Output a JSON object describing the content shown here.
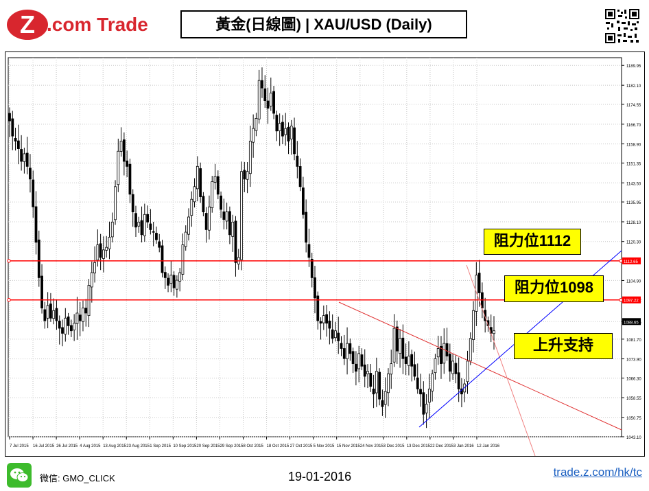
{
  "header": {
    "logo_mark": "Z",
    "logo_text": ".com Trade",
    "title": "黃金(日線圖) | XAU/USD (Daily)"
  },
  "colors": {
    "brand_red": "#d8262e",
    "resistance_line": "#ff0000",
    "support_line": "#0000ff",
    "highlight": "#ffff00"
  },
  "chart_data": {
    "type": "candlestick",
    "symbol": "XAU/USD",
    "timeframe": "Daily",
    "ylim": [
      1043.1,
      1193.0
    ],
    "y_ticks": [
      "1189.95",
      "1182.10",
      "1174.55",
      "1166.70",
      "1158.90",
      "1151.35",
      "1143.50",
      "1135.95",
      "1128.10",
      "1120.30",
      "1112.65",
      "1104.90",
      "1097.22",
      "1088.65",
      "1081.70",
      "1073.90",
      "1066.30",
      "1058.55",
      "1050.75",
      "1043.10"
    ],
    "x_ticks": [
      "7 Jul 2015",
      "16 Jul 2015",
      "26 Jul 2015",
      "4 Aug 2015",
      "13 Aug 2015",
      "23 Aug 2015",
      "1 Sep 2015",
      "10 Sep 2015",
      "20 Sep 2015",
      "29 Sep 2015",
      "8 Oct 2015",
      "18 Oct 2015",
      "27 Oct 2015",
      "5 Nov 2015",
      "15 Nov 2015",
      "24 Nov 2015",
      "3 Dec 2015",
      "13 Dec 2015",
      "22 Dec 2015",
      "3 Jan 2016",
      "12 Jan 2016"
    ],
    "price_tags": [
      "1112.65",
      "1097.22",
      "1088.65"
    ],
    "closes": [
      1168,
      1162,
      1160,
      1157,
      1152,
      1155,
      1150,
      1145,
      1134,
      1120,
      1106,
      1094,
      1089,
      1095,
      1090,
      1093,
      1089,
      1086,
      1084,
      1090,
      1087,
      1085,
      1088,
      1092,
      1089,
      1094,
      1092,
      1103,
      1108,
      1112,
      1119,
      1114,
      1117,
      1118,
      1122,
      1128,
      1142,
      1156,
      1160,
      1152,
      1150,
      1139,
      1132,
      1126,
      1128,
      1123,
      1131,
      1128,
      1125,
      1124,
      1121,
      1118,
      1108,
      1106,
      1103,
      1107,
      1102,
      1105,
      1108,
      1119,
      1124,
      1130,
      1137,
      1142,
      1150,
      1138,
      1132,
      1125,
      1134,
      1144,
      1146,
      1139,
      1133,
      1129,
      1132,
      1123,
      1128,
      1112,
      1114,
      1148,
      1145,
      1148,
      1160,
      1165,
      1169,
      1184,
      1181,
      1176,
      1173,
      1179,
      1171,
      1164,
      1167,
      1162,
      1165,
      1160,
      1166,
      1155,
      1150,
      1142,
      1131,
      1120,
      1114,
      1106,
      1098,
      1089,
      1088,
      1091,
      1088,
      1086,
      1082,
      1085,
      1081,
      1078,
      1074,
      1080,
      1076,
      1072,
      1069,
      1076,
      1071,
      1067,
      1069,
      1063,
      1060,
      1069,
      1058,
      1055,
      1061,
      1068,
      1072,
      1086,
      1077,
      1082,
      1074,
      1072,
      1075,
      1071,
      1067,
      1062,
      1060,
      1052,
      1056,
      1062,
      1068,
      1074,
      1078,
      1072,
      1080,
      1075,
      1069,
      1073,
      1068,
      1062,
      1060,
      1064,
      1073,
      1082,
      1093,
      1107,
      1100,
      1094,
      1089,
      1087,
      1084,
      1085
    ],
    "annotations": [
      "阻力位1112",
      "阻力位1098",
      "上升支持"
    ],
    "grid": true
  },
  "footer": {
    "wechat_label": "微信: GMO_CLICK",
    "date": "19-01-2016",
    "link": "trade.z.com/hk/tc"
  }
}
